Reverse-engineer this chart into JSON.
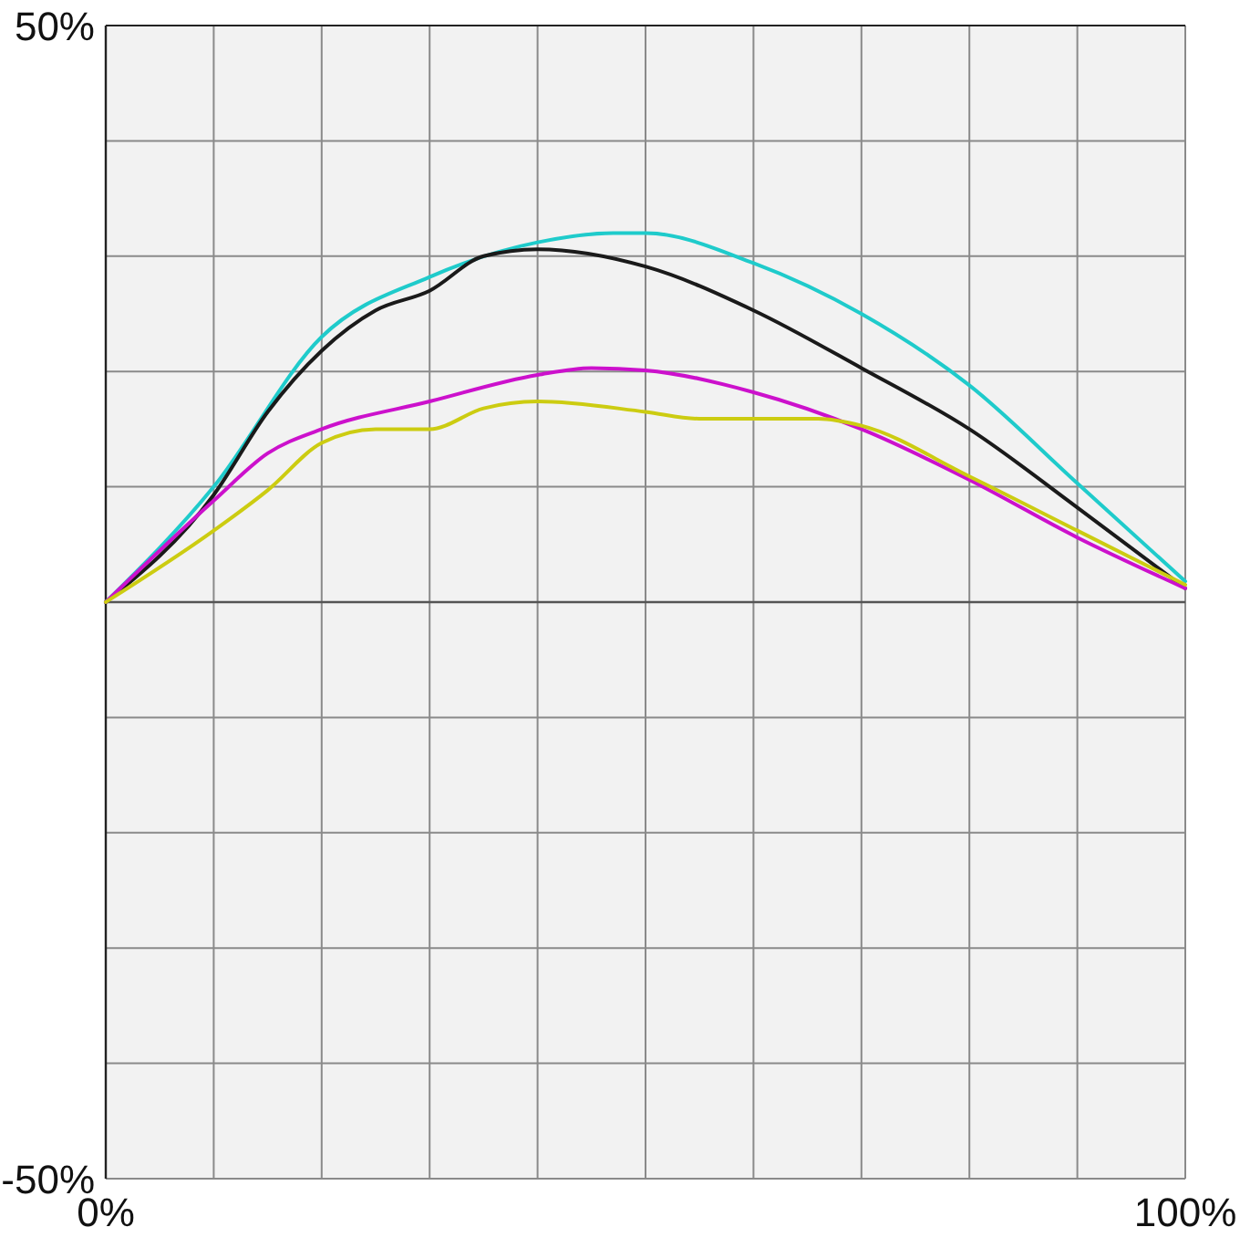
{
  "chart_data": {
    "type": "line",
    "xlim": [
      0,
      100
    ],
    "ylim": [
      -50,
      50
    ],
    "xticks": [
      {
        "value": 0,
        "label": "0%"
      },
      {
        "value": 10,
        "label": null
      },
      {
        "value": 20,
        "label": null
      },
      {
        "value": 30,
        "label": null
      },
      {
        "value": 40,
        "label": null
      },
      {
        "value": 50,
        "label": null
      },
      {
        "value": 60,
        "label": null
      },
      {
        "value": 70,
        "label": null
      },
      {
        "value": 80,
        "label": null
      },
      {
        "value": 90,
        "label": null
      },
      {
        "value": 100,
        "label": "100%"
      }
    ],
    "yticks": [
      {
        "value": -50,
        "label": "-50%"
      },
      {
        "value": -40,
        "label": null
      },
      {
        "value": -30,
        "label": null
      },
      {
        "value": -20,
        "label": null
      },
      {
        "value": -10,
        "label": null
      },
      {
        "value": 0,
        "label": null
      },
      {
        "value": 10,
        "label": null
      },
      {
        "value": 20,
        "label": null
      },
      {
        "value": 30,
        "label": null
      },
      {
        "value": 40,
        "label": null
      },
      {
        "value": 50,
        "label": "50%"
      }
    ],
    "grid": true,
    "marker": "none",
    "line_style": "solid",
    "series": [
      {
        "color": "#1fcbcb",
        "x": [
          0,
          10,
          20,
          30,
          40,
          47,
          50,
          60,
          70,
          80,
          90,
          100
        ],
        "values": [
          0,
          10,
          23,
          28.2,
          31.2,
          32,
          32,
          29.4,
          25,
          18.8,
          10.3,
          1.8
        ]
      },
      {
        "color": "#1a1a1a",
        "x": [
          0,
          10,
          15,
          20,
          25,
          30,
          35,
          40,
          50,
          60,
          70,
          80,
          90,
          100
        ],
        "values": [
          0,
          9.3,
          16.5,
          21.8,
          25.3,
          27,
          30,
          30.6,
          29.1,
          25.3,
          20.3,
          15,
          8.2,
          1.2
        ]
      },
      {
        "color": "#cc11cc",
        "x": [
          0,
          10,
          15,
          20,
          30,
          40,
          45,
          50,
          60,
          70,
          80,
          90,
          100
        ],
        "values": [
          0,
          8.8,
          12.9,
          15,
          17.4,
          19.7,
          20.3,
          20.1,
          18.2,
          15,
          10.6,
          5.6,
          1.2
        ]
      },
      {
        "color": "#cccc11",
        "x": [
          0,
          10,
          15,
          20,
          25,
          30,
          35,
          40,
          50,
          55,
          60,
          66,
          70,
          80,
          90,
          100
        ],
        "values": [
          0,
          6.2,
          9.7,
          13.8,
          15,
          15,
          16.8,
          17.4,
          16.5,
          15.9,
          15.9,
          15.9,
          15.3,
          10.9,
          6.2,
          1.5
        ]
      }
    ]
  }
}
